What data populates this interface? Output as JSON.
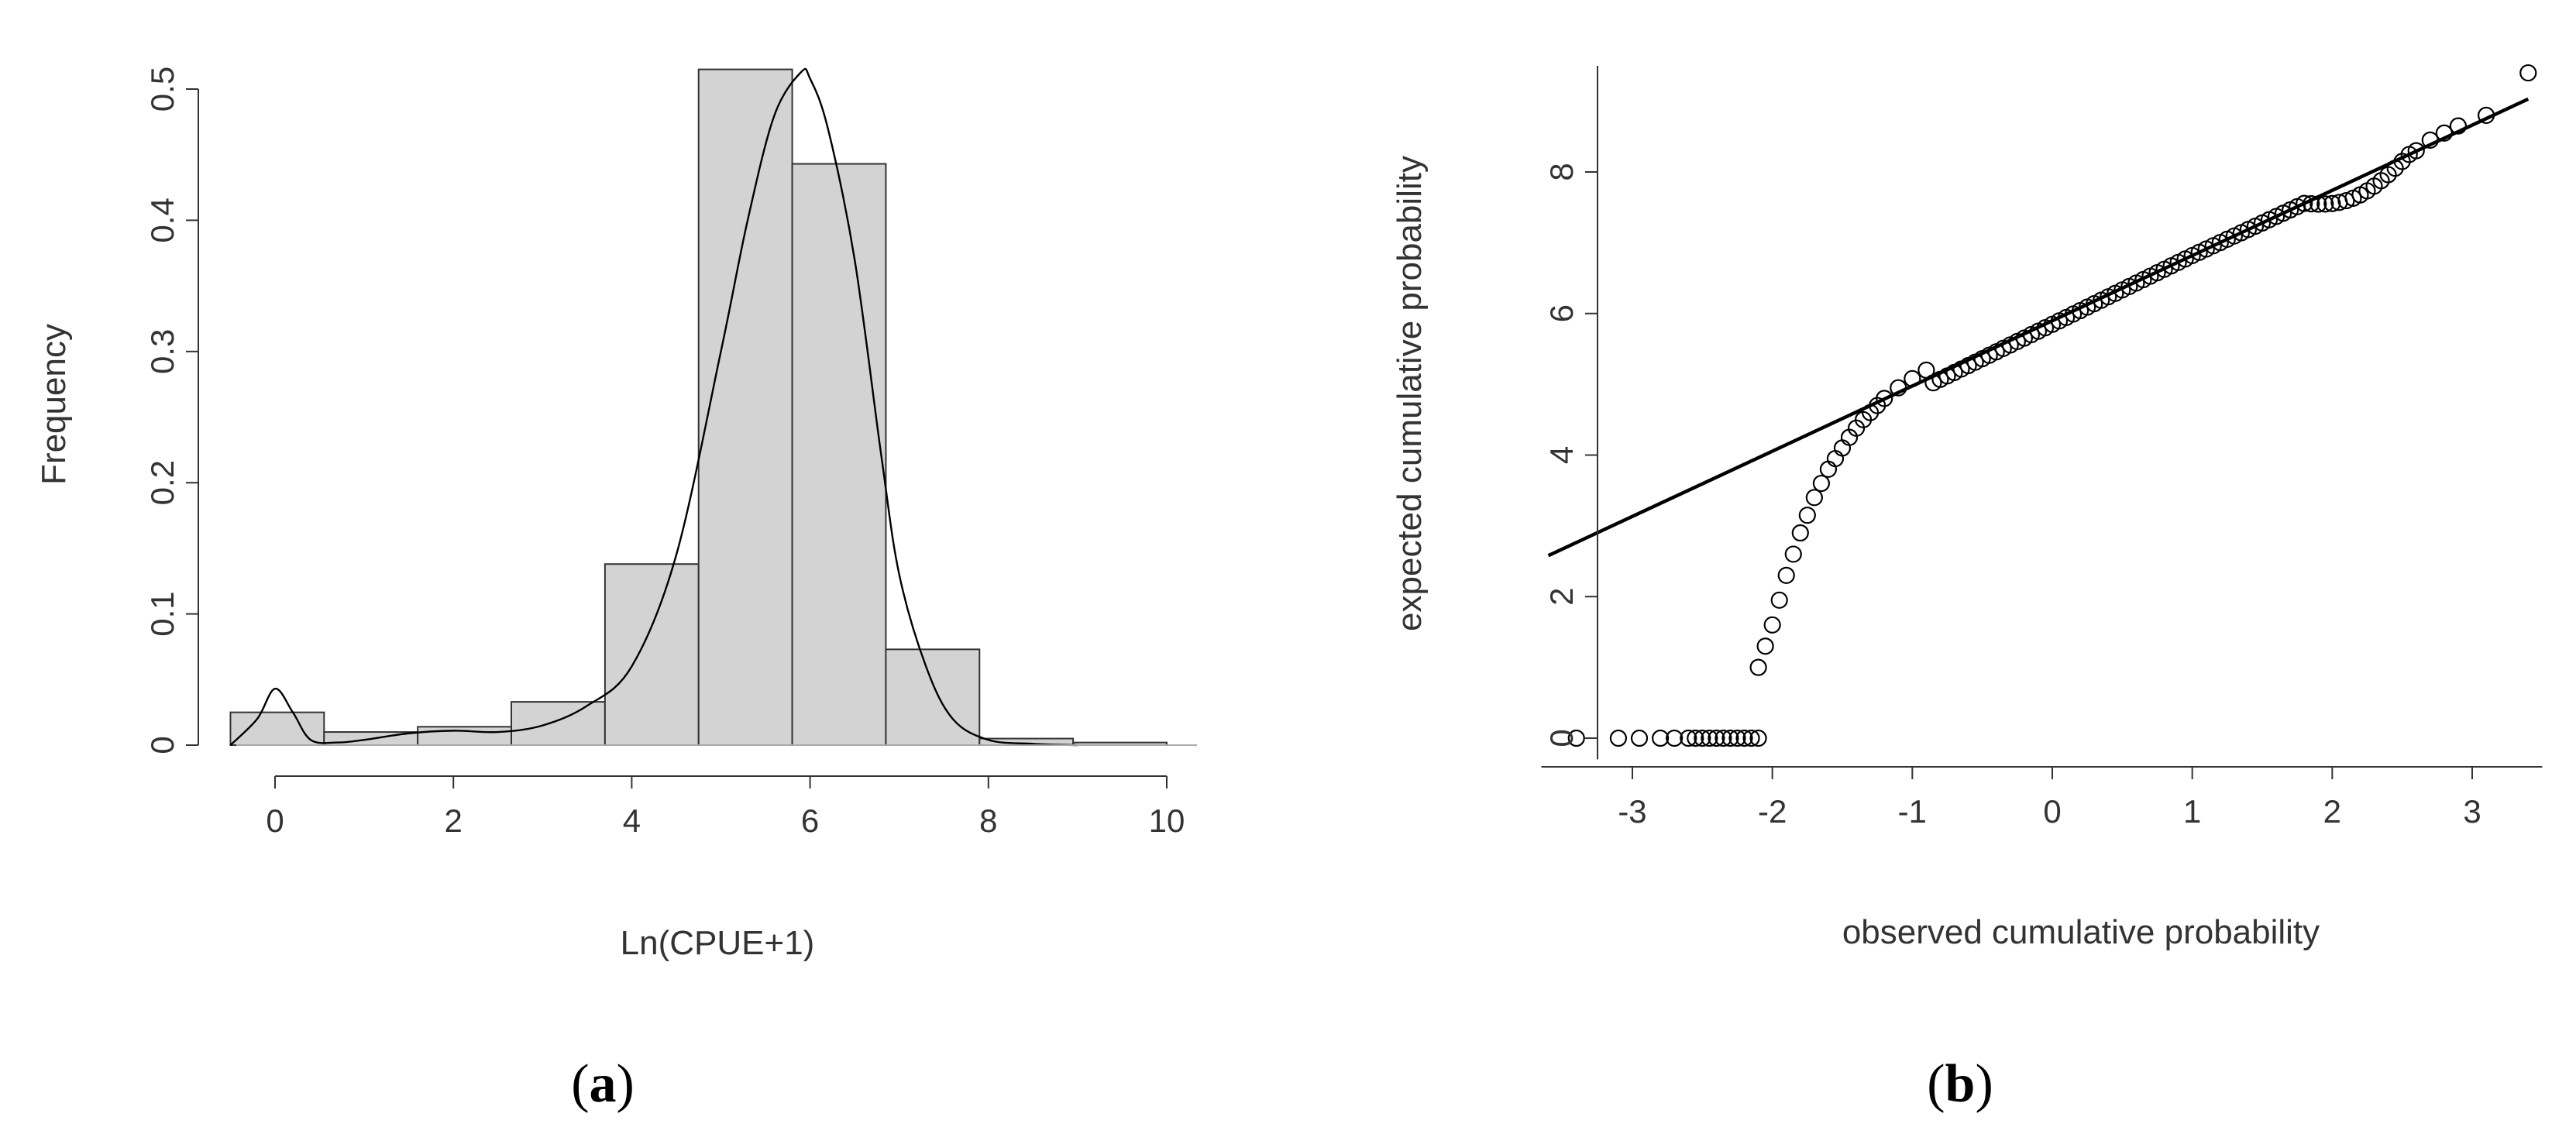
{
  "chart_data": [
    {
      "panel": "(a)",
      "type": "bar",
      "title": "",
      "xlabel": "Ln(CPUE+1)",
      "ylabel": "Frequency",
      "xlim": [
        -0.6,
        10.4
      ],
      "ylim": [
        0,
        0.5
      ],
      "x_ticks": [
        0,
        2,
        4,
        6,
        8,
        10
      ],
      "y_ticks": [
        0,
        0.1,
        0.2,
        0.3,
        0.4,
        0.5
      ],
      "y_tick_labels": [
        "0",
        "0.1",
        "0.2",
        "0.3",
        "0.4",
        "0.5"
      ],
      "bins": [
        {
          "x0": -0.5,
          "x1": 0.55,
          "value": 0.025
        },
        {
          "x0": 0.55,
          "x1": 1.6,
          "value": 0.01
        },
        {
          "x0": 1.6,
          "x1": 2.65,
          "value": 0.014
        },
        {
          "x0": 2.65,
          "x1": 3.7,
          "value": 0.033
        },
        {
          "x0": 3.7,
          "x1": 4.75,
          "value": 0.138
        },
        {
          "x0": 4.75,
          "x1": 5.8,
          "value": 0.515
        },
        {
          "x0": 5.8,
          "x1": 6.85,
          "value": 0.443
        },
        {
          "x0": 6.85,
          "x1": 7.9,
          "value": 0.073
        },
        {
          "x0": 7.9,
          "x1": 8.95,
          "value": 0.005
        },
        {
          "x0": 8.95,
          "x1": 10.0,
          "value": 0.002
        }
      ],
      "density_curve": {
        "x": [
          -0.5,
          -0.2,
          0.0,
          0.2,
          0.4,
          0.7,
          1.0,
          1.5,
          2.0,
          2.5,
          3.0,
          3.5,
          4.0,
          4.5,
          5.0,
          5.3,
          5.6,
          5.9,
          6.0,
          6.2,
          6.5,
          6.8,
          7.0,
          7.3,
          7.6,
          8.0,
          8.5,
          9.0
        ],
        "y": [
          0.0,
          0.02,
          0.043,
          0.025,
          0.004,
          0.002,
          0.004,
          0.009,
          0.011,
          0.01,
          0.015,
          0.03,
          0.06,
          0.145,
          0.3,
          0.4,
          0.48,
          0.513,
          0.508,
          0.47,
          0.37,
          0.22,
          0.13,
          0.06,
          0.02,
          0.004,
          0.001,
          0.0
        ]
      },
      "colors": {
        "bar_fill": "#d3d3d3",
        "bar_stroke": "#333333",
        "curve": "#000000"
      }
    },
    {
      "panel": "(b)",
      "type": "scatter",
      "title": "",
      "xlabel": "observed cumulative probability",
      "ylabel": "expected cumulative probability",
      "xlim": [
        -3.6,
        3.6
      ],
      "ylim": [
        -0.3,
        9.5
      ],
      "x_ticks": [
        -3,
        -2,
        -1,
        0,
        1,
        2,
        3
      ],
      "y_ticks": [
        0,
        2,
        4,
        6,
        8
      ],
      "reference_line": {
        "x": [
          -3.6,
          3.4
        ],
        "y": [
          2.58,
          9.03
        ]
      },
      "points": {
        "zero_group": {
          "x": [
            -3.4,
            -3.1,
            -2.95,
            -2.8,
            -2.7,
            -2.6,
            -2.55,
            -2.5,
            -2.45,
            -2.4,
            -2.35,
            -2.3,
            -2.25,
            -2.2,
            -2.15,
            -2.1
          ],
          "y": 0
        },
        "rising_curve": {
          "x": [
            -2.1,
            -2.05,
            -2.0,
            -1.95,
            -1.9,
            -1.85,
            -1.8,
            -1.75,
            -1.7,
            -1.65,
            -1.6,
            -1.55,
            -1.5,
            -1.45,
            -1.4,
            -1.35,
            -1.3,
            -1.25,
            -1.2,
            -1.1,
            -1.0,
            -0.9
          ],
          "y": [
            1.0,
            1.3,
            1.6,
            1.95,
            2.3,
            2.6,
            2.9,
            3.15,
            3.4,
            3.6,
            3.8,
            3.95,
            4.1,
            4.25,
            4.38,
            4.5,
            4.6,
            4.7,
            4.8,
            4.95,
            5.08,
            5.2
          ]
        },
        "upper_tail": {
          "x": [
            2.6,
            2.7,
            2.8,
            2.9,
            3.1,
            3.4
          ],
          "y": [
            8.3,
            8.45,
            8.55,
            8.65,
            8.8,
            9.4
          ]
        }
      },
      "colors": {
        "points": "#000000",
        "line": "#000000"
      }
    }
  ],
  "panel_labels": {
    "a": "a",
    "b": "b"
  }
}
